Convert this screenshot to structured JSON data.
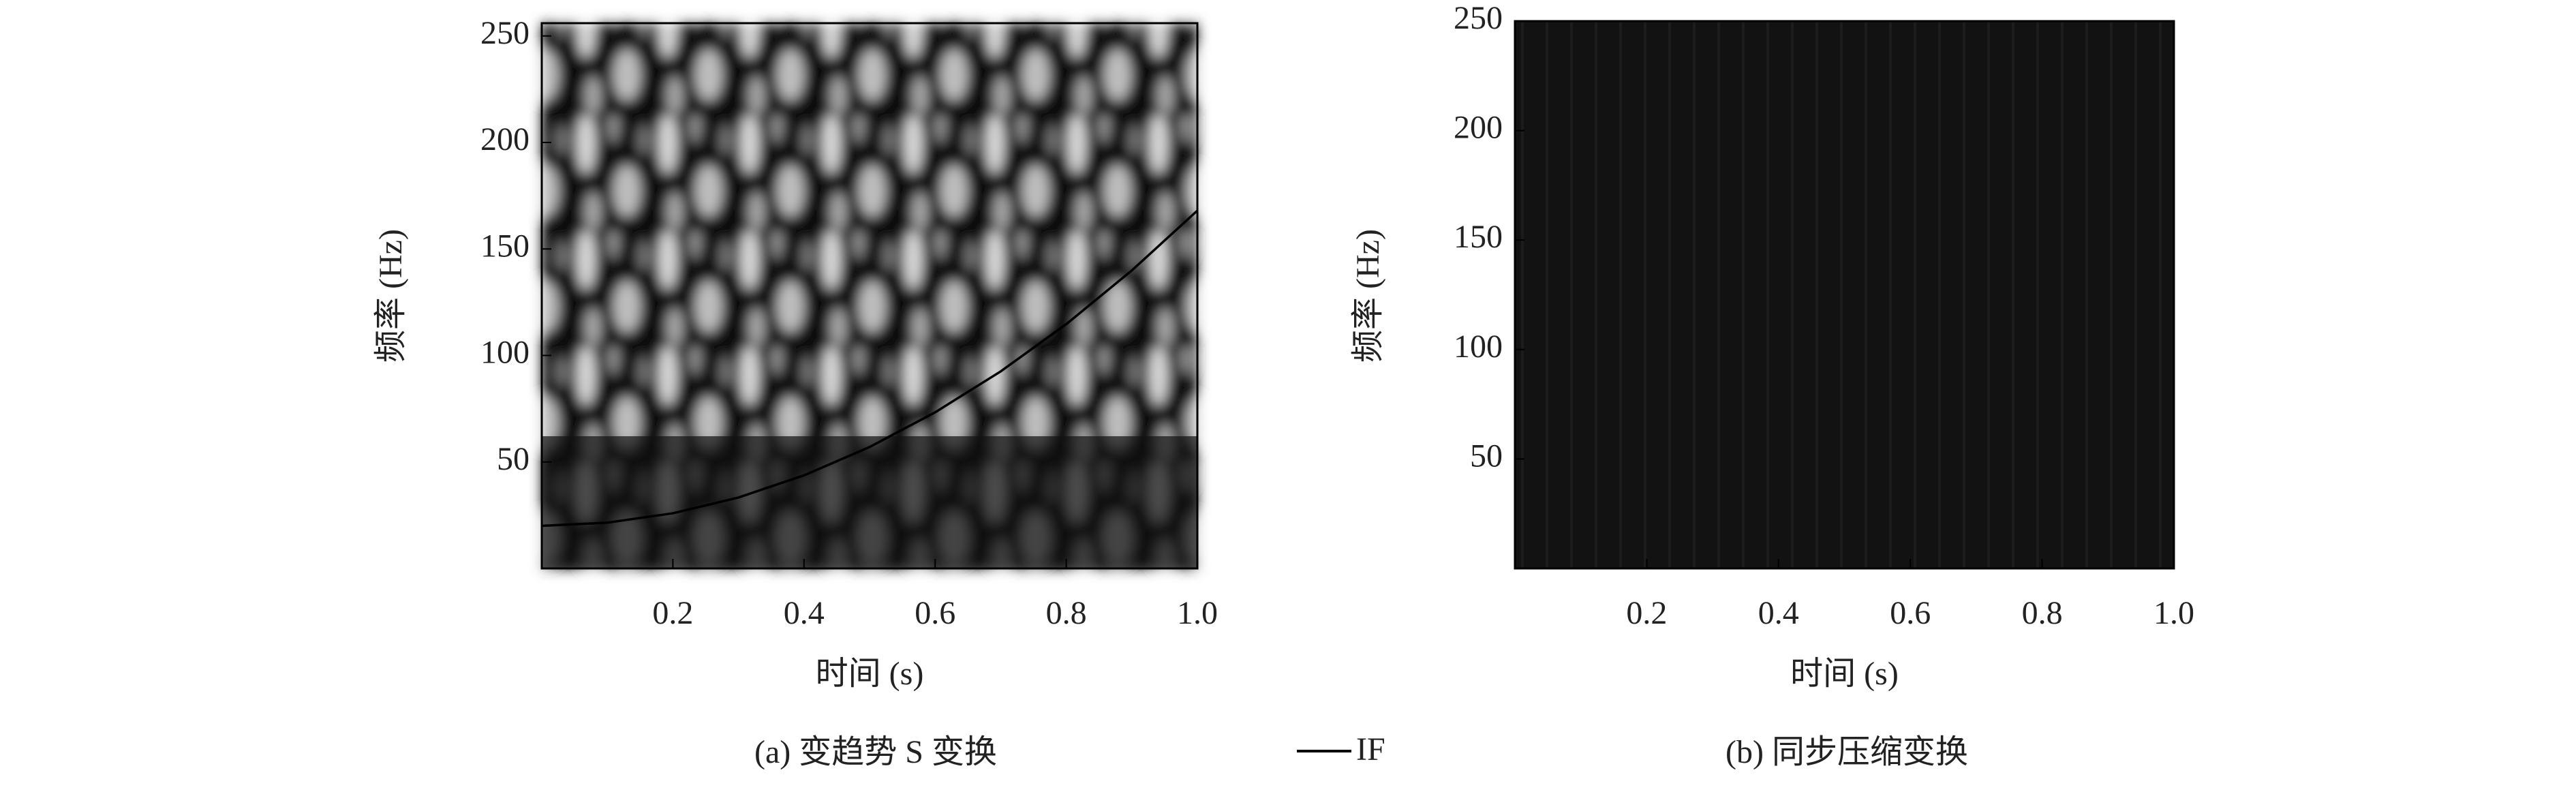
{
  "chart_data": [
    {
      "type": "line",
      "caption": "(a) 变趋势 S 变换",
      "xlabel": "时间 (s)",
      "ylabel": "频率 (Hz)",
      "x": [
        0,
        0.1,
        0.2,
        0.3,
        0.4,
        0.5,
        0.6,
        0.7,
        0.8,
        0.9,
        1.0
      ],
      "series": [
        {
          "name": "IF",
          "color": "#000000",
          "values": [
            20,
            21.5,
            25.9,
            33.3,
            43.7,
            57,
            73.3,
            92.5,
            114.7,
            139.9,
            168
          ]
        }
      ],
      "xlim": [
        0,
        1
      ],
      "ylim": [
        0,
        256
      ],
      "xticks": [
        0.2,
        0.4,
        0.6,
        0.8,
        {
          "value": 1,
          "label": "1.0"
        }
      ],
      "yticks": [
        50,
        100,
        150,
        200,
        250
      ]
    },
    {
      "type": "image",
      "caption": "(b) 同步压缩变换",
      "xlabel": "时间 (s)",
      "ylabel": "频率 (Hz)",
      "xlim": [
        0,
        1
      ],
      "ylim": [
        0,
        250
      ],
      "xticks": [
        0.2,
        0.4,
        0.6,
        0.8,
        {
          "value": 1,
          "label": "1.0"
        }
      ],
      "yticks": [
        50,
        100,
        150,
        200,
        250
      ]
    }
  ]
}
